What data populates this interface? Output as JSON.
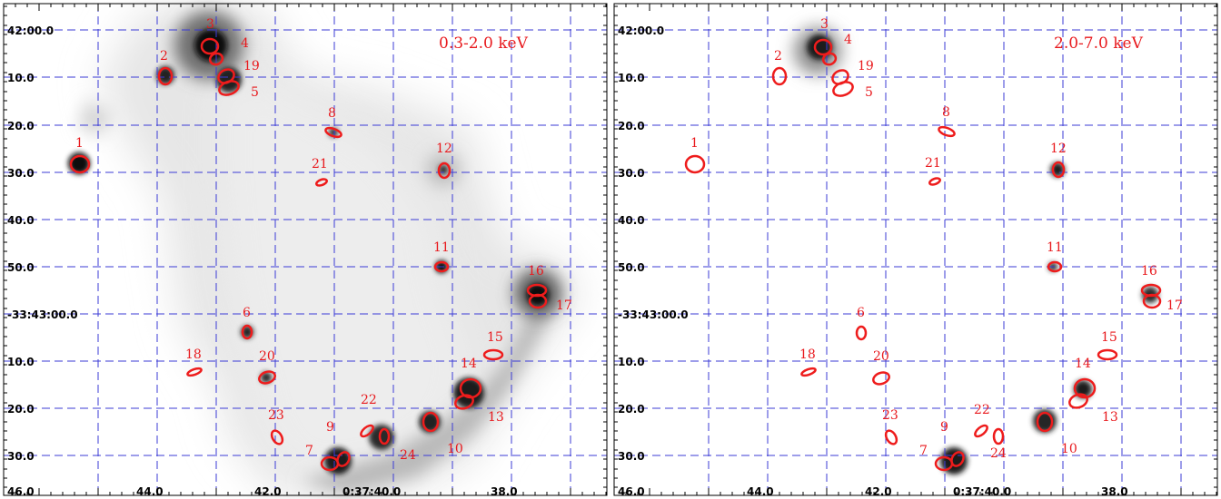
{
  "chart_data": [
    {
      "type": "other",
      "band_label": "0.3-2.0 keV",
      "y_tick_labels": [
        "42:00.0",
        "10.0",
        "20.0",
        "30.0",
        "40.0",
        "50.0",
        "-33:43:00.0",
        "10.0",
        "20.0",
        "30.0"
      ],
      "x_tick_labels": [
        "46.0",
        "44.0",
        "42.0",
        "0:37:40.0",
        "38.0"
      ],
      "sources": [
        "1",
        "2",
        "3",
        "4",
        "19",
        "5",
        "8",
        "21",
        "12",
        "11",
        "16",
        "17",
        "6",
        "15",
        "18",
        "20",
        "14",
        "13",
        "22",
        "23",
        "9",
        "24",
        "7",
        "10"
      ]
    },
    {
      "type": "other",
      "band_label": "2.0-7.0 keV",
      "y_tick_labels": [
        "42:00.0",
        "10.0",
        "20.0",
        "30.0",
        "40.0",
        "50.0",
        "-33:43:00.0",
        "10.0",
        "20.0",
        "30.0"
      ],
      "x_tick_labels": [
        "46.0",
        "44.0",
        "42.0",
        "0:37:40.0",
        "38.0"
      ],
      "sources": [
        "1",
        "2",
        "3",
        "4",
        "19",
        "5",
        "8",
        "21",
        "12",
        "11",
        "16",
        "17",
        "6",
        "15",
        "18",
        "20",
        "14",
        "13",
        "22",
        "23",
        "9",
        "24",
        "7",
        "10"
      ]
    }
  ]
}
